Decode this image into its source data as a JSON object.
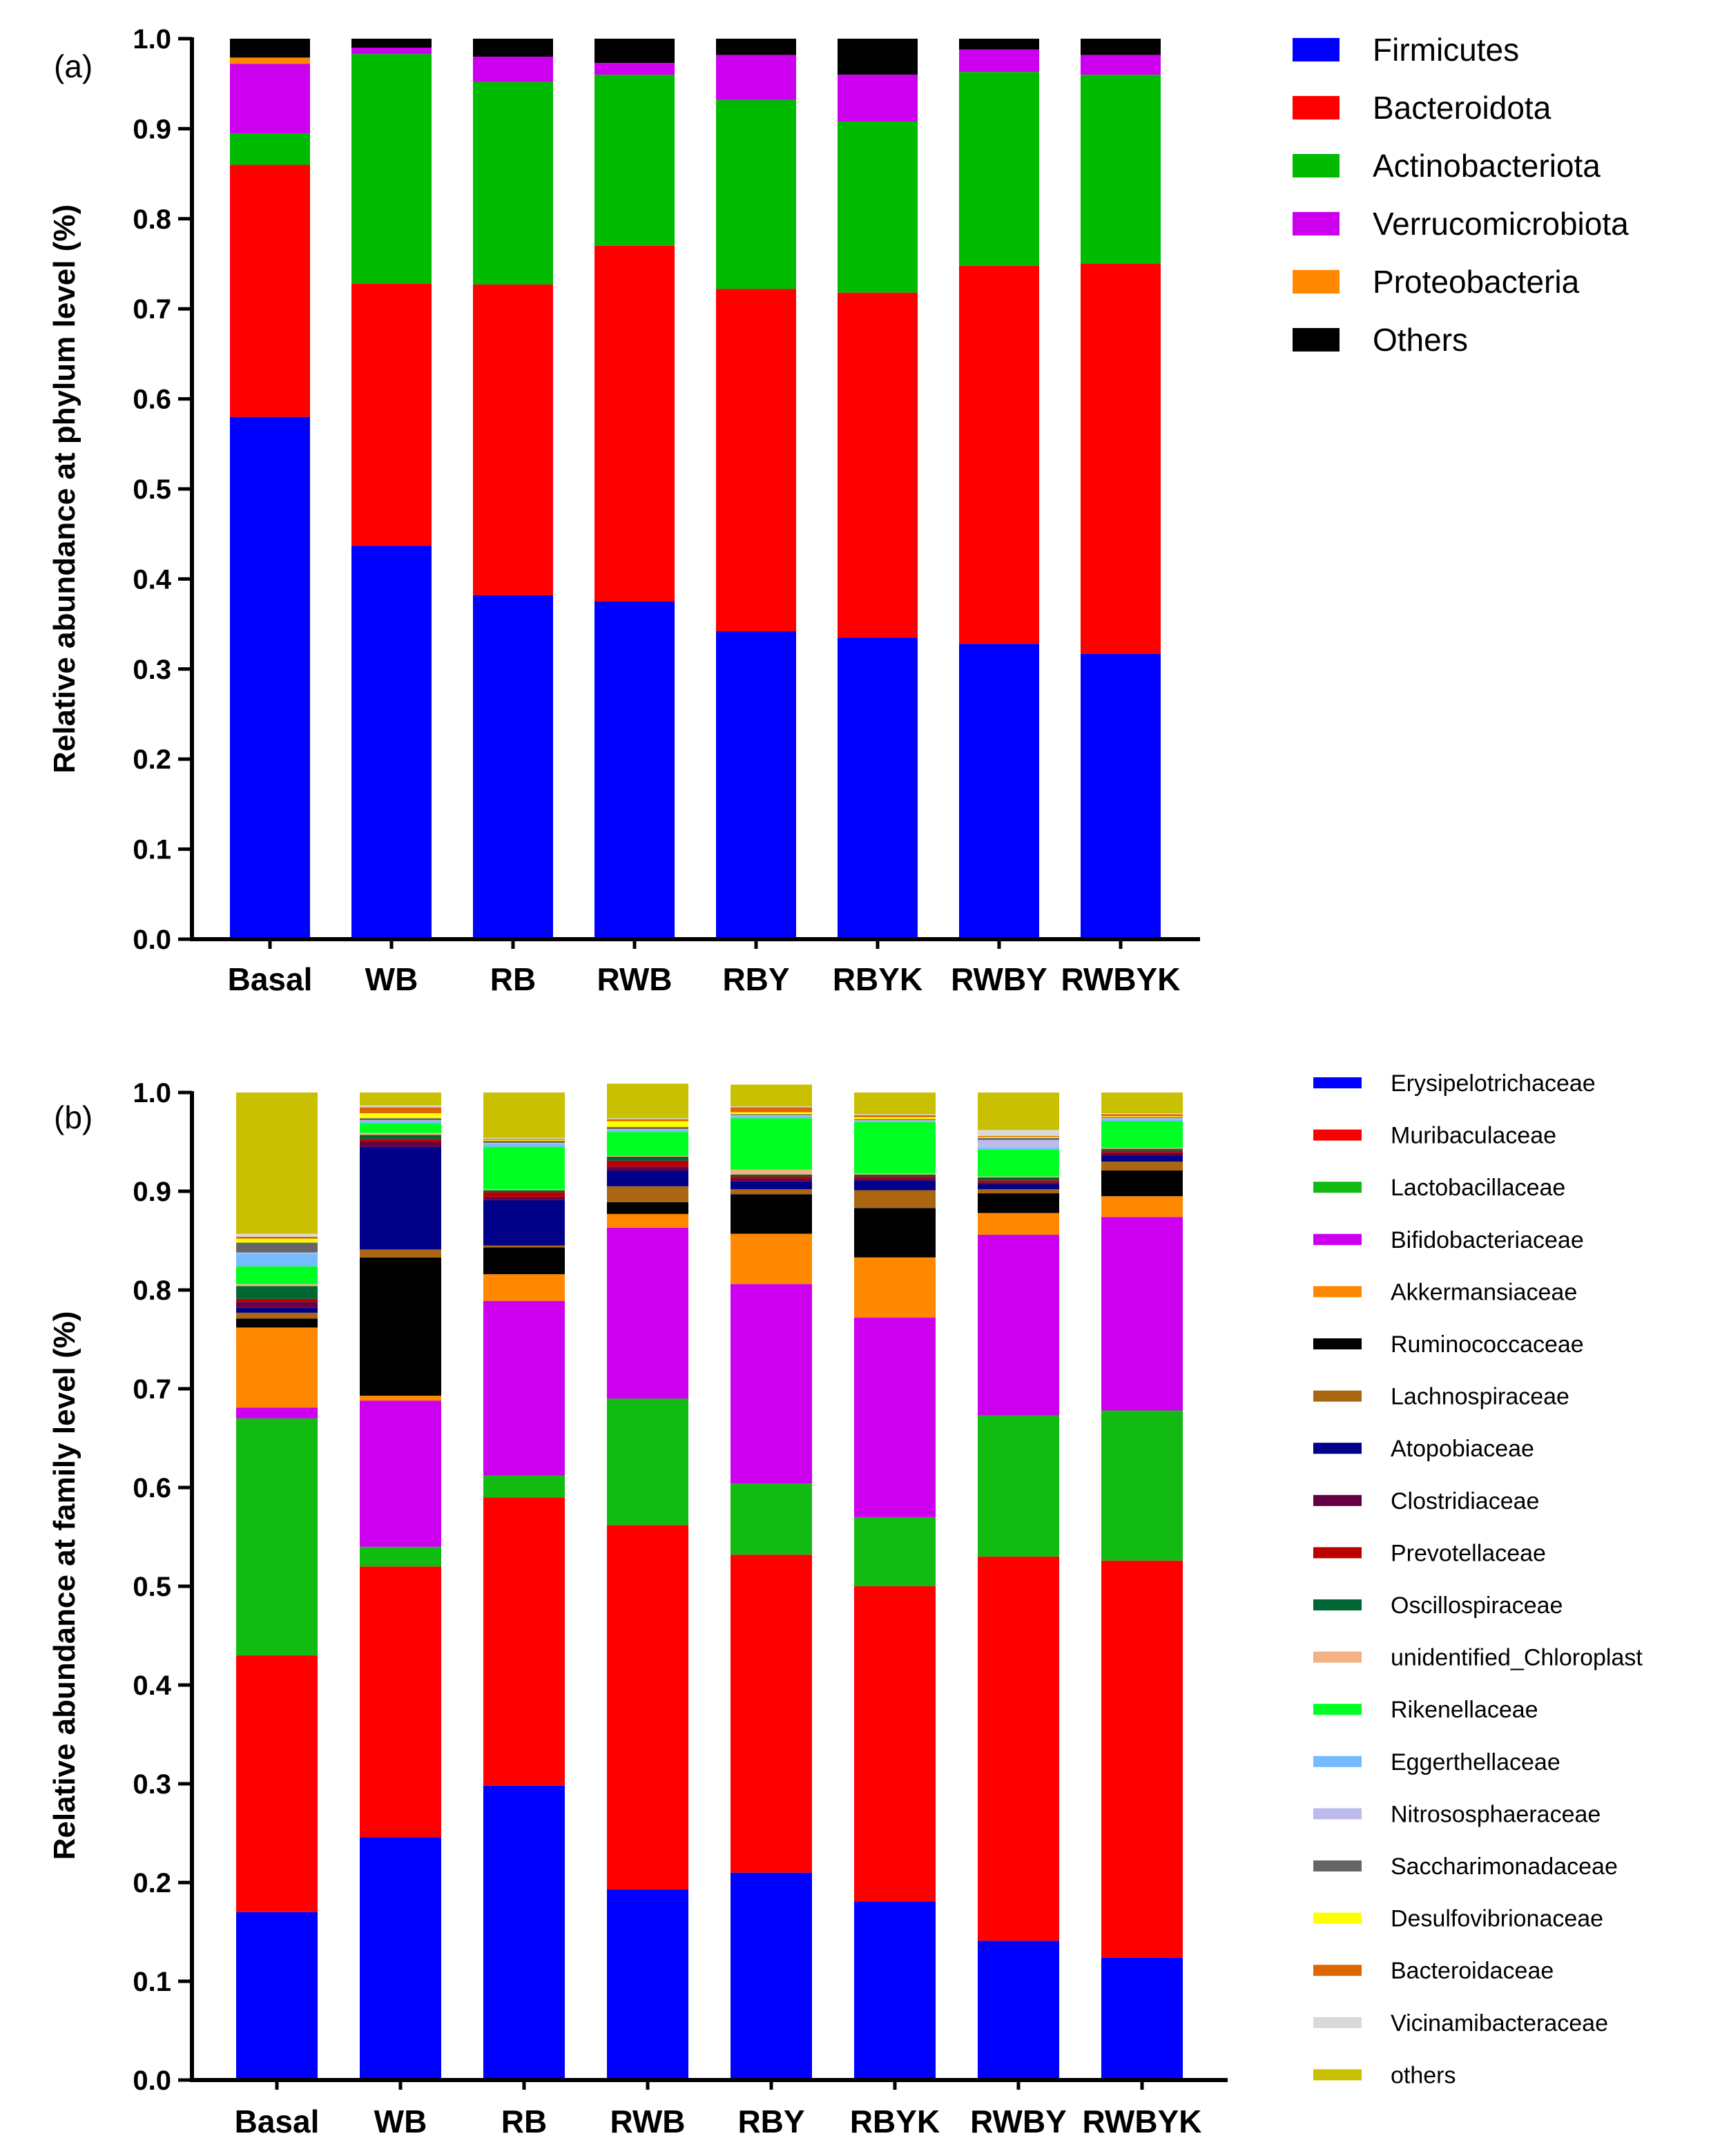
{
  "chart_data": [
    {
      "type": "bar",
      "stacked": true,
      "panel_label": "(a)",
      "title": "",
      "xlabel": "",
      "ylabel": "Relative abundance at phylum level (%)",
      "ylim": [
        0,
        1.0
      ],
      "yticks": [
        "0.0",
        "0.1",
        "0.2",
        "0.3",
        "0.4",
        "0.5",
        "0.6",
        "0.7",
        "0.8",
        "0.9",
        "1.0"
      ],
      "legend_position": "right",
      "categories": [
        "Basal",
        "WB",
        "RB",
        "RWB",
        "RBY",
        "RBYK",
        "RWBY",
        "RWBYK"
      ],
      "series": [
        {
          "name": "Firmicutes",
          "color": "#0000ff",
          "values": [
            0.58,
            0.437,
            0.382,
            0.375,
            0.342,
            0.335,
            0.328,
            0.317
          ]
        },
        {
          "name": "Bacteroidota",
          "color": "#ff0000",
          "values": [
            0.28,
            0.291,
            0.345,
            0.395,
            0.38,
            0.383,
            0.42,
            0.433
          ]
        },
        {
          "name": "Actinobacteriota",
          "color": "#00bb00",
          "values": [
            0.035,
            0.255,
            0.225,
            0.19,
            0.21,
            0.19,
            0.215,
            0.21
          ]
        },
        {
          "name": "Verrucomicrobiota",
          "color": "#cc00ee",
          "values": [
            0.077,
            0.007,
            0.028,
            0.013,
            0.05,
            0.052,
            0.025,
            0.022
          ]
        },
        {
          "name": "Proteobacteria",
          "color": "#ff8800",
          "values": [
            0.007,
            0.0,
            0.0,
            0.0,
            0.0,
            0.0,
            0.0,
            0.0
          ]
        },
        {
          "name": "Others",
          "color": "#000000",
          "values": [
            0.021,
            0.01,
            0.02,
            0.027,
            0.018,
            0.04,
            0.012,
            0.018
          ]
        }
      ]
    },
    {
      "type": "bar",
      "stacked": true,
      "panel_label": "(b)",
      "title": "",
      "xlabel": "",
      "ylabel": "Relative abundance at family level (%)",
      "ylim": [
        0,
        1.0
      ],
      "yticks": [
        "0.0",
        "0.1",
        "0.2",
        "0.3",
        "0.4",
        "0.5",
        "0.6",
        "0.7",
        "0.8",
        "0.9",
        "1.0"
      ],
      "legend_position": "right",
      "categories": [
        "Basal",
        "WB",
        "RB",
        "RWB",
        "RBY",
        "RBYK",
        "RWBY",
        "RWBYK"
      ],
      "series": [
        {
          "name": "Erysipelotrichaceae",
          "color": "#0000ff",
          "values": [
            0.17,
            0.246,
            0.298,
            0.193,
            0.21,
            0.181,
            0.141,
            0.124
          ]
        },
        {
          "name": "Muribaculaceae",
          "color": "#ff0000",
          "values": [
            0.26,
            0.274,
            0.292,
            0.369,
            0.322,
            0.319,
            0.389,
            0.402
          ]
        },
        {
          "name": "Lactobacillaceae",
          "color": "#11bb11",
          "values": [
            0.24,
            0.02,
            0.022,
            0.128,
            0.072,
            0.07,
            0.143,
            0.152
          ]
        },
        {
          "name": "Bifidobacteriaceae",
          "color": "#cc00ee",
          "values": [
            0.011,
            0.148,
            0.177,
            0.173,
            0.202,
            0.202,
            0.183,
            0.196
          ]
        },
        {
          "name": "Akkermansiaceae",
          "color": "#ff8800",
          "values": [
            0.081,
            0.005,
            0.027,
            0.014,
            0.051,
            0.061,
            0.022,
            0.021
          ]
        },
        {
          "name": "Ruminococcaceae",
          "color": "#000000",
          "values": [
            0.009,
            0.14,
            0.027,
            0.012,
            0.04,
            0.05,
            0.02,
            0.026
          ]
        },
        {
          "name": "Lachnospiraceae",
          "color": "#aa6611",
          "values": [
            0.006,
            0.008,
            0.002,
            0.016,
            0.005,
            0.018,
            0.004,
            0.009
          ]
        },
        {
          "name": "Atopobiaceae",
          "color": "#000088",
          "values": [
            0.005,
            0.104,
            0.046,
            0.016,
            0.008,
            0.01,
            0.005,
            0.006
          ]
        },
        {
          "name": "Clostridiaceae",
          "color": "#660044",
          "values": [
            0.006,
            0.005,
            0.003,
            0.004,
            0.003,
            0.002,
            0.002,
            0.003
          ]
        },
        {
          "name": "Prevotellaceae",
          "color": "#bb0000",
          "values": [
            0.003,
            0.003,
            0.005,
            0.006,
            0.002,
            0.002,
            0.002,
            0.002
          ]
        },
        {
          "name": "Oscillospiraceae",
          "color": "#006633",
          "values": [
            0.013,
            0.004,
            0.002,
            0.004,
            0.002,
            0.002,
            0.003,
            0.002
          ]
        },
        {
          "name": "unidentified_Chloroplast",
          "color": "#f4b183",
          "values": [
            0.002,
            0.002,
            0.001,
            0.001,
            0.005,
            0.001,
            0.001,
            0.001
          ]
        },
        {
          "name": "Rikenellaceae",
          "color": "#00ff22",
          "values": [
            0.018,
            0.01,
            0.043,
            0.024,
            0.052,
            0.052,
            0.027,
            0.027
          ]
        },
        {
          "name": "Eggerthellaceae",
          "color": "#77bbff",
          "values": [
            0.013,
            0.002,
            0.003,
            0.002,
            0.002,
            0.001,
            0.002,
            0.002
          ]
        },
        {
          "name": "Nitrososphaeraceae",
          "color": "#bbbbee",
          "values": [
            0.001,
            0.001,
            0.001,
            0.001,
            0.001,
            0.001,
            0.008,
            0.001
          ]
        },
        {
          "name": "Saccharimonadaceae",
          "color": "#666666",
          "values": [
            0.01,
            0.002,
            0.002,
            0.002,
            0.001,
            0.001,
            0.002,
            0.001
          ]
        },
        {
          "name": "Desulfovibrionaceae",
          "color": "#ffff00",
          "values": [
            0.004,
            0.005,
            0.001,
            0.006,
            0.002,
            0.002,
            0.001,
            0.001
          ]
        },
        {
          "name": "Bacteroidaceae",
          "color": "#dd6600",
          "values": [
            0.002,
            0.006,
            0.001,
            0.002,
            0.005,
            0.002,
            0.001,
            0.002
          ]
        },
        {
          "name": "Vicinamibacteraceae",
          "color": "#d9d9d9",
          "values": [
            0.003,
            0.002,
            0.001,
            0.001,
            0.001,
            0.001,
            0.006,
            0.001
          ]
        },
        {
          "name": "others",
          "color": "#c8c000",
          "values": [
            0.143,
            0.013,
            0.046,
            0.035,
            0.022,
            0.022,
            0.038,
            0.021
          ]
        }
      ]
    }
  ]
}
